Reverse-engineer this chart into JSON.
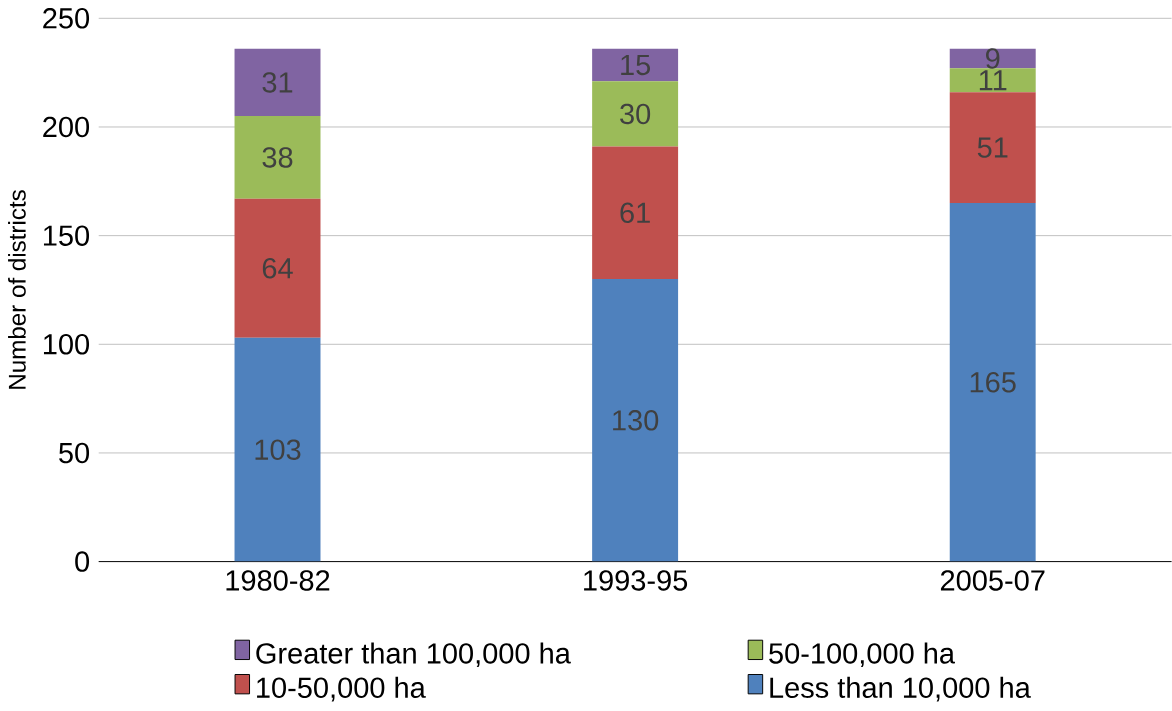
{
  "chart_data": {
    "type": "bar",
    "stacked": true,
    "ylabel": "Number of districts",
    "categories": [
      "1980-82",
      "1993-95",
      "2005-07"
    ],
    "series": [
      {
        "name": "Less than 10,000 ha",
        "color": "#4f81bd",
        "values": [
          103,
          130,
          165
        ]
      },
      {
        "name": "10-50,000 ha",
        "color": "#c0504d",
        "values": [
          64,
          61,
          51
        ]
      },
      {
        "name": "50-100,000 ha",
        "color": "#9bbb59",
        "values": [
          38,
          30,
          11
        ]
      },
      {
        "name": "Greater than 100,000 ha",
        "color": "#8064a2",
        "values": [
          31,
          15,
          9
        ]
      }
    ],
    "ylim": [
      0,
      250
    ],
    "yticks": [
      0,
      50,
      100,
      150,
      200,
      250
    ],
    "grid": "y",
    "legend": "bottom",
    "data_labels": true
  }
}
